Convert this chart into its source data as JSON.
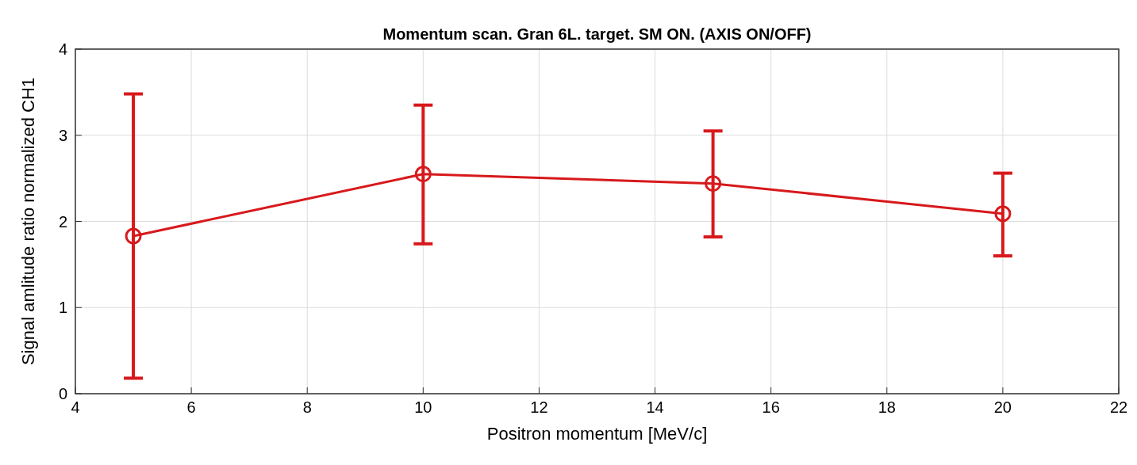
{
  "chart_data": {
    "type": "line",
    "title": "Momentum scan. Gran 6L. target. SM ON. (AXIS ON/OFF)",
    "xlabel": "Positron momentum [MeV/c]",
    "ylabel": "Signal amlitude ratio normalized CH1",
    "x": [
      5,
      10,
      15,
      20
    ],
    "series": [
      {
        "color": "#d7191c",
        "values": [
          1.83,
          2.55,
          2.44,
          2.09
        ],
        "errors": [
          [
            0.18,
            3.48
          ],
          [
            1.74,
            3.35
          ],
          [
            1.82,
            3.05
          ],
          [
            1.6,
            2.56
          ]
        ]
      }
    ],
    "xlim": [
      4,
      22
    ],
    "xticks": [
      4,
      6,
      8,
      10,
      12,
      14,
      16,
      18,
      20,
      22
    ],
    "ylim": [
      0,
      4
    ],
    "yticks": [
      0,
      1,
      2,
      3,
      4
    ],
    "grid": true,
    "marker": "circle",
    "line_style": "solid"
  }
}
